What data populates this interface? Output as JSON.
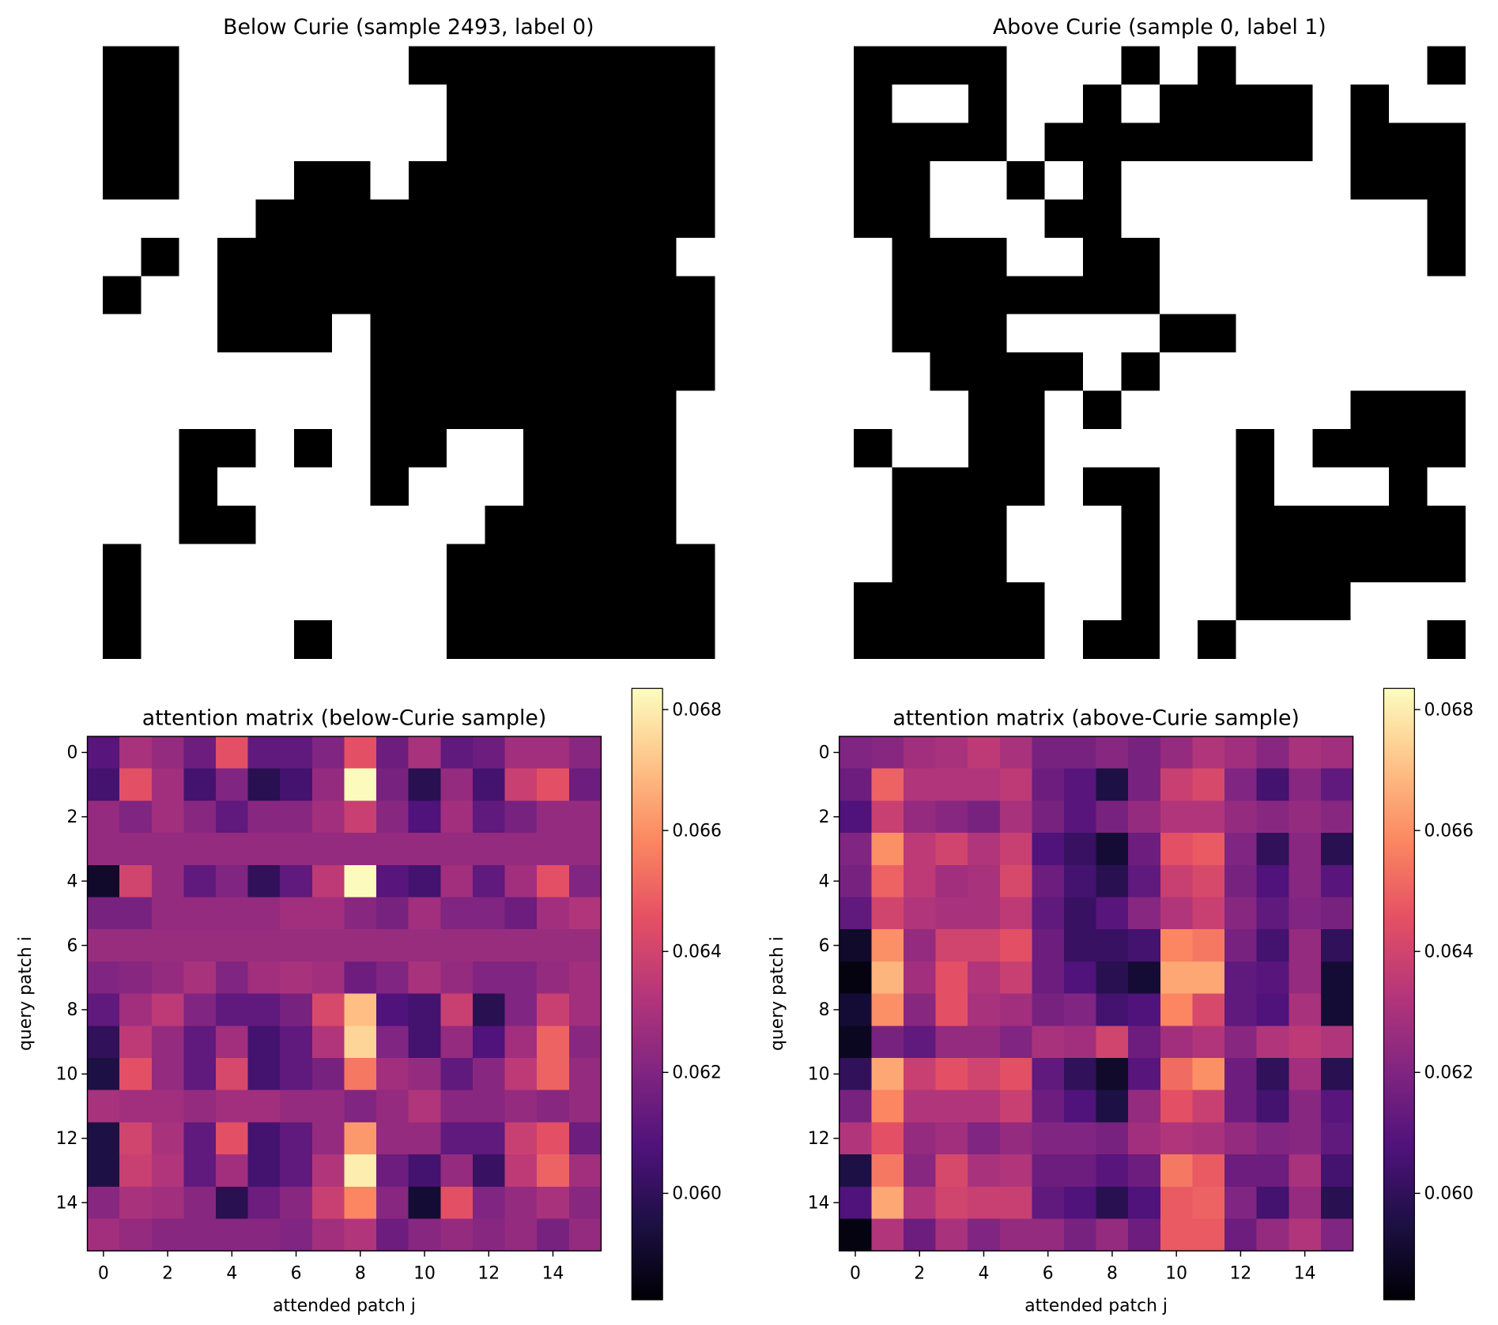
{
  "chart_data": [
    {
      "type": "image",
      "title": "Below Curie (sample 2493, label 0)",
      "colormap": "binary",
      "values": [
        [
          1,
          1,
          0,
          0,
          0,
          0,
          0,
          0,
          1,
          1,
          1,
          1,
          1,
          1,
          1,
          1
        ],
        [
          1,
          1,
          0,
          0,
          0,
          0,
          0,
          0,
          0,
          1,
          1,
          1,
          1,
          1,
          1,
          1
        ],
        [
          1,
          1,
          0,
          0,
          0,
          0,
          0,
          0,
          0,
          1,
          1,
          1,
          1,
          1,
          1,
          1
        ],
        [
          1,
          1,
          0,
          0,
          0,
          1,
          1,
          0,
          1,
          1,
          1,
          1,
          1,
          1,
          1,
          1
        ],
        [
          0,
          0,
          0,
          0,
          1,
          1,
          1,
          1,
          1,
          1,
          1,
          1,
          1,
          1,
          1,
          1
        ],
        [
          0,
          1,
          0,
          1,
          1,
          1,
          1,
          1,
          1,
          1,
          1,
          1,
          1,
          1,
          1,
          0
        ],
        [
          1,
          0,
          0,
          1,
          1,
          1,
          1,
          1,
          1,
          1,
          1,
          1,
          1,
          1,
          1,
          1
        ],
        [
          0,
          0,
          0,
          1,
          1,
          1,
          0,
          1,
          1,
          1,
          1,
          1,
          1,
          1,
          1,
          1
        ],
        [
          0,
          0,
          0,
          0,
          0,
          0,
          0,
          1,
          1,
          1,
          1,
          1,
          1,
          1,
          1,
          1
        ],
        [
          0,
          0,
          0,
          0,
          0,
          0,
          0,
          1,
          1,
          1,
          1,
          1,
          1,
          1,
          1,
          0
        ],
        [
          0,
          0,
          1,
          1,
          0,
          1,
          0,
          1,
          1,
          0,
          0,
          1,
          1,
          1,
          1,
          0
        ],
        [
          0,
          0,
          1,
          0,
          0,
          0,
          0,
          1,
          0,
          0,
          0,
          1,
          1,
          1,
          1,
          0
        ],
        [
          0,
          0,
          1,
          1,
          0,
          0,
          0,
          0,
          0,
          0,
          1,
          1,
          1,
          1,
          1,
          0
        ],
        [
          1,
          0,
          0,
          0,
          0,
          0,
          0,
          0,
          0,
          1,
          1,
          1,
          1,
          1,
          1,
          1
        ],
        [
          1,
          0,
          0,
          0,
          0,
          0,
          0,
          0,
          0,
          1,
          1,
          1,
          1,
          1,
          1,
          1
        ],
        [
          1,
          0,
          0,
          0,
          0,
          1,
          0,
          0,
          0,
          1,
          1,
          1,
          1,
          1,
          1,
          1
        ]
      ]
    },
    {
      "type": "image",
      "title": "Above Curie (sample 0, label 1)",
      "colormap": "binary",
      "values": [
        [
          1,
          1,
          1,
          1,
          0,
          0,
          0,
          1,
          0,
          1,
          0,
          0,
          0,
          0,
          0,
          1
        ],
        [
          1,
          0,
          0,
          1,
          0,
          0,
          1,
          0,
          1,
          1,
          1,
          1,
          0,
          1,
          0,
          0
        ],
        [
          1,
          1,
          1,
          1,
          0,
          1,
          1,
          1,
          1,
          1,
          1,
          1,
          0,
          1,
          1,
          1
        ],
        [
          1,
          1,
          0,
          0,
          1,
          0,
          1,
          0,
          0,
          0,
          0,
          0,
          0,
          1,
          1,
          1
        ],
        [
          1,
          1,
          0,
          0,
          0,
          1,
          1,
          0,
          0,
          0,
          0,
          0,
          0,
          0,
          0,
          1
        ],
        [
          0,
          1,
          1,
          1,
          0,
          0,
          1,
          1,
          0,
          0,
          0,
          0,
          0,
          0,
          0,
          1
        ],
        [
          0,
          1,
          1,
          1,
          1,
          1,
          1,
          1,
          0,
          0,
          0,
          0,
          0,
          0,
          0,
          0
        ],
        [
          0,
          1,
          1,
          1,
          0,
          0,
          0,
          0,
          1,
          1,
          0,
          0,
          0,
          0,
          0,
          0
        ],
        [
          0,
          0,
          1,
          1,
          1,
          1,
          0,
          1,
          0,
          0,
          0,
          0,
          0,
          0,
          0,
          0
        ],
        [
          0,
          0,
          0,
          1,
          1,
          0,
          1,
          0,
          0,
          0,
          0,
          0,
          0,
          1,
          1,
          1
        ],
        [
          1,
          0,
          0,
          1,
          1,
          0,
          0,
          0,
          0,
          0,
          1,
          0,
          1,
          1,
          1,
          1
        ],
        [
          0,
          1,
          1,
          1,
          1,
          0,
          1,
          1,
          0,
          0,
          1,
          0,
          0,
          0,
          1,
          0
        ],
        [
          0,
          1,
          1,
          1,
          0,
          0,
          0,
          1,
          0,
          0,
          1,
          1,
          1,
          1,
          1,
          1
        ],
        [
          0,
          1,
          1,
          1,
          0,
          0,
          0,
          1,
          0,
          0,
          1,
          1,
          1,
          1,
          1,
          1
        ],
        [
          1,
          1,
          1,
          1,
          1,
          0,
          0,
          1,
          0,
          0,
          1,
          1,
          1,
          0,
          0,
          0
        ],
        [
          1,
          1,
          1,
          1,
          1,
          0,
          1,
          1,
          0,
          1,
          0,
          0,
          0,
          0,
          0,
          1
        ]
      ]
    },
    {
      "type": "heatmap",
      "title": "attention matrix (below-Curie sample)",
      "xlabel": "attended patch j",
      "ylabel": "query patch i",
      "colormap": "magma",
      "xlim": [
        -0.5,
        15.5
      ],
      "ylim": [
        15.5,
        -0.5
      ],
      "xticks": [
        0,
        2,
        4,
        6,
        8,
        10,
        12,
        14
      ],
      "yticks": [
        0,
        2,
        4,
        6,
        8,
        10,
        12,
        14
      ],
      "clim": [
        0.05824,
        0.06835
      ],
      "cticks": [
        {
          "value": 0.06,
          "label": "0.060"
        },
        0.062,
        0.064,
        0.066,
        0.068
      ],
      "values": [
        [
          0.061,
          0.063,
          0.0625,
          0.0615,
          0.0645,
          0.0612,
          0.0612,
          0.062,
          0.0645,
          0.0615,
          0.063,
          0.0612,
          0.0615,
          0.0628,
          0.0628,
          0.0622
        ],
        [
          0.0605,
          0.0645,
          0.0628,
          0.0605,
          0.062,
          0.0598,
          0.0605,
          0.0625,
          0.0683,
          0.0618,
          0.0598,
          0.0625,
          0.0605,
          0.0638,
          0.0645,
          0.0615
        ],
        [
          0.0625,
          0.062,
          0.0628,
          0.0622,
          0.0612,
          0.0622,
          0.0622,
          0.0628,
          0.0638,
          0.0622,
          0.0608,
          0.0628,
          0.0612,
          0.0618,
          0.0625,
          0.0625
        ],
        [
          0.0625,
          0.0625,
          0.0625,
          0.0625,
          0.0625,
          0.0625,
          0.0625,
          0.0625,
          0.0625,
          0.0625,
          0.0625,
          0.0625,
          0.0625,
          0.0625,
          0.0625,
          0.0625
        ],
        [
          0.059,
          0.064,
          0.0625,
          0.0612,
          0.062,
          0.06,
          0.0612,
          0.0635,
          0.0683,
          0.061,
          0.0605,
          0.0628,
          0.0612,
          0.0628,
          0.0645,
          0.062
        ],
        [
          0.0618,
          0.0618,
          0.0625,
          0.0625,
          0.0625,
          0.0625,
          0.0628,
          0.0628,
          0.0622,
          0.0618,
          0.0628,
          0.062,
          0.062,
          0.0615,
          0.0628,
          0.0632
        ],
        [
          0.0626,
          0.0626,
          0.0626,
          0.0626,
          0.0626,
          0.0626,
          0.0626,
          0.0626,
          0.0626,
          0.0626,
          0.0626,
          0.0626,
          0.0626,
          0.0626,
          0.0626,
          0.0626
        ],
        [
          0.062,
          0.0622,
          0.0625,
          0.063,
          0.062,
          0.0628,
          0.063,
          0.0628,
          0.0615,
          0.062,
          0.063,
          0.0625,
          0.062,
          0.062,
          0.0625,
          0.0628
        ],
        [
          0.0612,
          0.0628,
          0.0635,
          0.062,
          0.0612,
          0.0612,
          0.0618,
          0.0642,
          0.067,
          0.0608,
          0.0605,
          0.0638,
          0.0598,
          0.062,
          0.0638,
          0.0628
        ],
        [
          0.06,
          0.0635,
          0.0625,
          0.0612,
          0.0628,
          0.0605,
          0.0612,
          0.0632,
          0.0675,
          0.062,
          0.0605,
          0.0625,
          0.0608,
          0.0628,
          0.065,
          0.0622
        ],
        [
          0.0595,
          0.0645,
          0.0625,
          0.0612,
          0.0642,
          0.0605,
          0.0612,
          0.0618,
          0.0655,
          0.0628,
          0.0625,
          0.0612,
          0.0622,
          0.0635,
          0.065,
          0.0625
        ],
        [
          0.063,
          0.0628,
          0.0628,
          0.0625,
          0.0628,
          0.0628,
          0.0625,
          0.0625,
          0.062,
          0.0625,
          0.0632,
          0.0622,
          0.0622,
          0.0625,
          0.0622,
          0.0625
        ],
        [
          0.0595,
          0.064,
          0.063,
          0.0612,
          0.0645,
          0.0605,
          0.0612,
          0.0625,
          0.0662,
          0.0625,
          0.0625,
          0.0612,
          0.0612,
          0.0638,
          0.0645,
          0.0615
        ],
        [
          0.0595,
          0.0638,
          0.0632,
          0.0612,
          0.0628,
          0.0605,
          0.0612,
          0.0632,
          0.068,
          0.0615,
          0.0605,
          0.0625,
          0.0602,
          0.0635,
          0.065,
          0.0628
        ],
        [
          0.0622,
          0.063,
          0.0628,
          0.0622,
          0.0598,
          0.0615,
          0.0622,
          0.0638,
          0.0658,
          0.0622,
          0.0592,
          0.0645,
          0.062,
          0.0625,
          0.063,
          0.0622
        ],
        [
          0.0628,
          0.0625,
          0.0622,
          0.0622,
          0.0622,
          0.0622,
          0.062,
          0.0628,
          0.0632,
          0.0615,
          0.0622,
          0.0625,
          0.0622,
          0.0625,
          0.0618,
          0.0625
        ]
      ]
    },
    {
      "type": "heatmap",
      "title": "attention matrix (above-Curie sample)",
      "xlabel": "attended patch j",
      "ylabel": "query patch i",
      "colormap": "magma",
      "xlim": [
        -0.5,
        15.5
      ],
      "ylim": [
        15.5,
        -0.5
      ],
      "xticks": [
        0,
        2,
        4,
        6,
        8,
        10,
        12,
        14
      ],
      "yticks": [
        0,
        2,
        4,
        6,
        8,
        10,
        12,
        14
      ],
      "clim": [
        0.05824,
        0.06835
      ],
      "cticks": [
        {
          "value": 0.06,
          "label": "0.060"
        },
        0.062,
        0.064,
        0.066,
        0.068
      ],
      "values": [
        [
          0.062,
          0.0622,
          0.0628,
          0.063,
          0.0635,
          0.063,
          0.0618,
          0.0618,
          0.0622,
          0.0618,
          0.0625,
          0.0632,
          0.0628,
          0.0622,
          0.063,
          0.0628
        ],
        [
          0.0615,
          0.065,
          0.0632,
          0.0632,
          0.0632,
          0.0635,
          0.0615,
          0.061,
          0.0595,
          0.0618,
          0.0638,
          0.0642,
          0.062,
          0.0605,
          0.0622,
          0.0612
        ],
        [
          0.0608,
          0.0638,
          0.0625,
          0.0622,
          0.0618,
          0.063,
          0.0618,
          0.061,
          0.0618,
          0.0625,
          0.0632,
          0.0632,
          0.0625,
          0.0622,
          0.0625,
          0.0622
        ],
        [
          0.062,
          0.066,
          0.0635,
          0.064,
          0.0632,
          0.0638,
          0.0608,
          0.0602,
          0.0592,
          0.0615,
          0.0645,
          0.0648,
          0.062,
          0.06,
          0.0622,
          0.0598
        ],
        [
          0.0618,
          0.065,
          0.0635,
          0.0628,
          0.063,
          0.0642,
          0.0615,
          0.0605,
          0.0598,
          0.0612,
          0.0638,
          0.0642,
          0.0618,
          0.0608,
          0.0622,
          0.061
        ],
        [
          0.0612,
          0.064,
          0.0632,
          0.063,
          0.063,
          0.0635,
          0.0612,
          0.0602,
          0.061,
          0.0622,
          0.0632,
          0.0638,
          0.0622,
          0.0612,
          0.062,
          0.0618
        ],
        [
          0.059,
          0.066,
          0.0625,
          0.064,
          0.064,
          0.0645,
          0.0615,
          0.0602,
          0.0602,
          0.0605,
          0.0658,
          0.0655,
          0.0618,
          0.0605,
          0.0625,
          0.06
        ],
        [
          0.0585,
          0.0668,
          0.0628,
          0.0645,
          0.0632,
          0.0638,
          0.0615,
          0.0608,
          0.0598,
          0.0592,
          0.0665,
          0.0665,
          0.0612,
          0.061,
          0.0625,
          0.0592
        ],
        [
          0.0592,
          0.066,
          0.0622,
          0.0645,
          0.063,
          0.0628,
          0.0618,
          0.062,
          0.0605,
          0.0608,
          0.0658,
          0.0642,
          0.0612,
          0.0608,
          0.063,
          0.0592
        ],
        [
          0.0588,
          0.0618,
          0.0612,
          0.0625,
          0.0625,
          0.062,
          0.063,
          0.0628,
          0.064,
          0.0615,
          0.0628,
          0.0632,
          0.0622,
          0.0632,
          0.0635,
          0.0632
        ],
        [
          0.06,
          0.0665,
          0.0638,
          0.0645,
          0.064,
          0.0645,
          0.0612,
          0.06,
          0.059,
          0.061,
          0.0652,
          0.066,
          0.0615,
          0.06,
          0.0628,
          0.0598
        ],
        [
          0.0618,
          0.0658,
          0.0632,
          0.0632,
          0.0632,
          0.0638,
          0.0615,
          0.0608,
          0.0595,
          0.0625,
          0.0645,
          0.0638,
          0.0615,
          0.0605,
          0.0622,
          0.061
        ],
        [
          0.0632,
          0.0645,
          0.0625,
          0.0628,
          0.062,
          0.0625,
          0.062,
          0.062,
          0.0618,
          0.0628,
          0.0632,
          0.063,
          0.0625,
          0.062,
          0.0622,
          0.0612
        ],
        [
          0.0595,
          0.0655,
          0.0622,
          0.0642,
          0.063,
          0.0632,
          0.0615,
          0.0615,
          0.061,
          0.0615,
          0.0655,
          0.0648,
          0.0615,
          0.0615,
          0.063,
          0.0605
        ],
        [
          0.0608,
          0.0665,
          0.0632,
          0.064,
          0.0638,
          0.0638,
          0.0612,
          0.0608,
          0.0598,
          0.0608,
          0.0648,
          0.065,
          0.062,
          0.0605,
          0.0625,
          0.0598
        ],
        [
          0.0585,
          0.0632,
          0.0615,
          0.063,
          0.062,
          0.0625,
          0.0625,
          0.0618,
          0.0625,
          0.0615,
          0.0648,
          0.0648,
          0.0615,
          0.0625,
          0.0632,
          0.062
        ]
      ]
    }
  ]
}
